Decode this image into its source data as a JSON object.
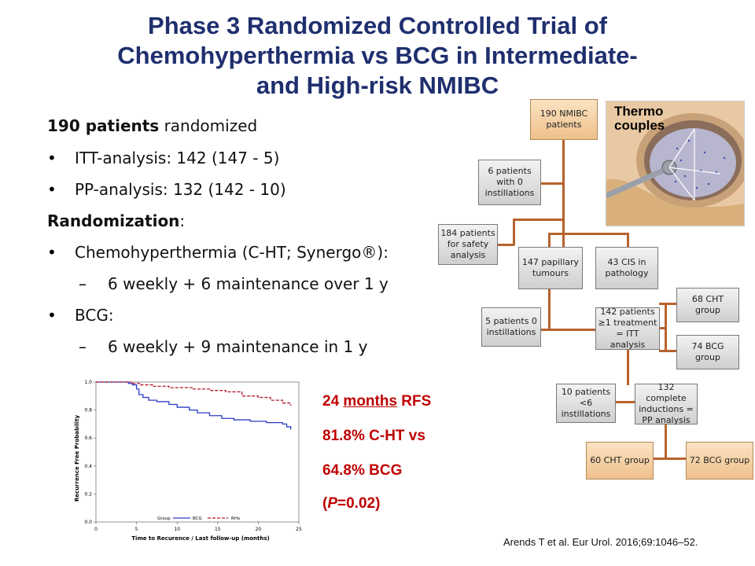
{
  "title": {
    "line1": "Phase 3 Randomized Controlled Trial of",
    "line2": "Chemohyperthermia vs BCG in Intermediate-",
    "line3": "and High-risk NMIBC"
  },
  "left": {
    "patients_bold": "190 patients",
    "patients_rest": " randomized",
    "itt": "ITT-analysis: 142 (147 - 5)",
    "pp": "PP-analysis: 132 (142 - 10)",
    "randomization_bold": "Randomization",
    "randomization_colon": ":",
    "cht": "Chemohyperthermia (C-HT; Synergo®):",
    "cht_sub": "6 weekly + 6 maintenance over 1 y",
    "bcg": "BCG:",
    "bcg_sub": "6 weekly + 9 maintenance in 1 y",
    "bullet": "•",
    "dash": "–"
  },
  "results": {
    "line1_a": "24 ",
    "line1_u": "months",
    "line1_b": " RFS",
    "line2": "81.8%  C-HT vs",
    "line3": "64.8%  BCG",
    "line4_a": "(",
    "line4_p": "P",
    "line4_b": "=0.02)"
  },
  "chart_data": {
    "type": "line",
    "xlabel": "Time to Recurence / Last follow-up (months)",
    "ylabel": "Recurrence Free Probability",
    "xlim": [
      0,
      25
    ],
    "ylim": [
      0.0,
      1.0
    ],
    "xticks": [
      "0",
      "5",
      "10",
      "15",
      "20",
      "25"
    ],
    "yticks": [
      "0.0",
      "0.2",
      "0.4",
      "0.6",
      "0.8",
      "1.0"
    ],
    "legend_title": "Group",
    "series": [
      {
        "name": "BCG",
        "color": "#2b3cc7",
        "dash": "solid",
        "x": [
          0,
          4,
          4.5,
          5,
          5.3,
          5.8,
          6.5,
          7.5,
          9,
          10,
          11.5,
          12.5,
          14,
          15.5,
          17,
          19,
          21,
          23,
          23.5,
          24
        ],
        "y": [
          1.0,
          0.99,
          0.98,
          0.95,
          0.91,
          0.89,
          0.87,
          0.86,
          0.84,
          0.82,
          0.8,
          0.78,
          0.76,
          0.74,
          0.73,
          0.72,
          0.71,
          0.7,
          0.68,
          0.66
        ]
      },
      {
        "name": "RHx",
        "color": "#b0182d",
        "dash": "dashed",
        "x": [
          0,
          4,
          4.5,
          5.5,
          7,
          9,
          12,
          14,
          16,
          18,
          20,
          21.5,
          23,
          24
        ],
        "y": [
          1.0,
          1.0,
          0.99,
          0.98,
          0.97,
          0.96,
          0.95,
          0.94,
          0.93,
          0.9,
          0.89,
          0.87,
          0.85,
          0.83
        ]
      }
    ]
  },
  "flow": {
    "n190": "190 NMIBC patients",
    "zero_inst": "6 patients with 0 instillations",
    "safety": "184 patients for safety analysis",
    "papillary": "147 papillary tumours",
    "cis": "43 CIS in pathology",
    "five_zero": "5 patients 0 instillations",
    "itt": "142 patients ≥1 treatment = ITT analysis",
    "cht68": "68 CHT group",
    "bcg74": "74 BCG group",
    "ten_lt6": "10 patients <6 instillations",
    "complete": "132 complete inductions = PP analysis",
    "cht60": "60 CHT group",
    "bcg72": "72 BCG group"
  },
  "illustration": {
    "label_line1": "Thermo",
    "label_line2": "couples"
  },
  "citation": "Arends T et al. Eur Urol. 2016;69:1046–52.",
  "colors": {
    "title": "#1f2f6e",
    "results": "#c00000",
    "connector": "#b7622d"
  }
}
